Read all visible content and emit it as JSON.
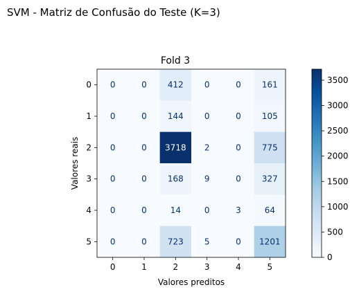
{
  "figure": {
    "suptitle": "SVM - Matriz de Confusão do Teste (K=3)"
  },
  "chart_data": {
    "type": "heatmap",
    "title": "Fold 3",
    "xlabel": "Valores preditos",
    "ylabel": "Valores reais",
    "x_categories": [
      "0",
      "1",
      "2",
      "3",
      "4",
      "5"
    ],
    "y_categories": [
      "0",
      "1",
      "2",
      "3",
      "4",
      "5"
    ],
    "values": [
      [
        0,
        0,
        412,
        0,
        0,
        161
      ],
      [
        0,
        0,
        144,
        0,
        0,
        105
      ],
      [
        0,
        0,
        3718,
        2,
        0,
        775
      ],
      [
        0,
        0,
        168,
        9,
        0,
        327
      ],
      [
        0,
        0,
        14,
        0,
        3,
        64
      ],
      [
        0,
        0,
        723,
        5,
        0,
        1201
      ]
    ],
    "colormap": "Blues",
    "vmin": 0,
    "vmax": 3718,
    "colorbar_ticks": [
      0,
      500,
      1000,
      1500,
      2000,
      2500,
      3000,
      3500
    ],
    "light_text_color": "#ffffff",
    "dark_text_color": "#08306b"
  }
}
